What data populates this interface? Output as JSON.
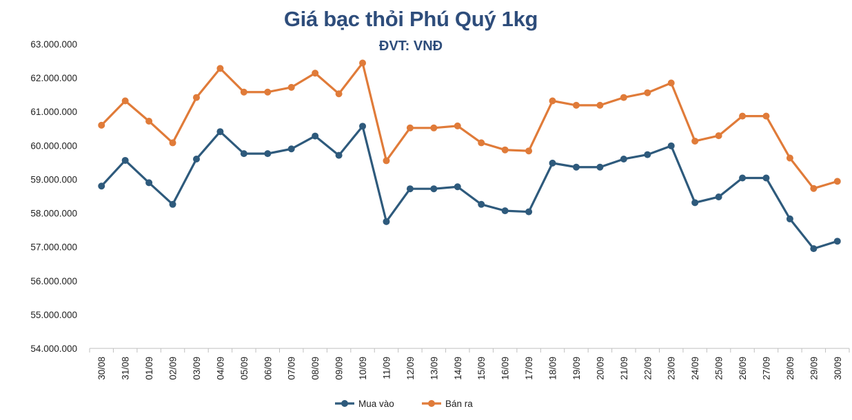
{
  "chart_data": {
    "type": "line",
    "title": "Giá bạc thỏi Phú Quý 1kg",
    "subtitle": "ĐVT: VNĐ",
    "xlabel": "",
    "ylabel": "",
    "ylim": [
      54000000,
      63000000
    ],
    "ytick_step": 1000000,
    "ytick_labels": [
      "54.000.000",
      "55.000.000",
      "56.000.000",
      "57.000.000",
      "58.000.000",
      "59.000.000",
      "60.000.000",
      "61.000.000",
      "62.000.000",
      "63.000.000"
    ],
    "grid": false,
    "legend_position": "bottom",
    "categories": [
      "30/08",
      "31/08",
      "01/09",
      "02/09",
      "03/09",
      "04/09",
      "05/09",
      "06/09",
      "07/09",
      "08/09",
      "09/09",
      "10/09",
      "11/09",
      "12/09",
      "13/09",
      "14/09",
      "15/09",
      "16/09",
      "17/09",
      "18/09",
      "19/09",
      "20/09",
      "21/09",
      "22/09",
      "23/09",
      "24/09",
      "25/09",
      "26/09",
      "27/09",
      "28/09",
      "29/09",
      "30/09"
    ],
    "series": [
      {
        "name": "Mua vào",
        "color": "#2E5A7C",
        "values": [
          58800000,
          59560000,
          58900000,
          58260000,
          59600000,
          60410000,
          59760000,
          59760000,
          59900000,
          60280000,
          59710000,
          60570000,
          57750000,
          58720000,
          58720000,
          58780000,
          58260000,
          58070000,
          58040000,
          59480000,
          59360000,
          59360000,
          59600000,
          59730000,
          59990000,
          58310000,
          58480000,
          59040000,
          59040000,
          57830000,
          56950000,
          57170000
        ]
      },
      {
        "name": "Bán ra",
        "color": "#E07B39",
        "values": [
          60600000,
          61320000,
          60720000,
          60080000,
          61420000,
          62280000,
          61580000,
          61580000,
          61720000,
          62140000,
          61530000,
          62440000,
          59550000,
          60520000,
          60520000,
          60580000,
          60080000,
          59870000,
          59840000,
          61320000,
          61190000,
          61190000,
          61420000,
          61560000,
          61850000,
          60130000,
          60290000,
          60870000,
          60870000,
          59630000,
          58730000,
          58940000
        ]
      }
    ]
  }
}
